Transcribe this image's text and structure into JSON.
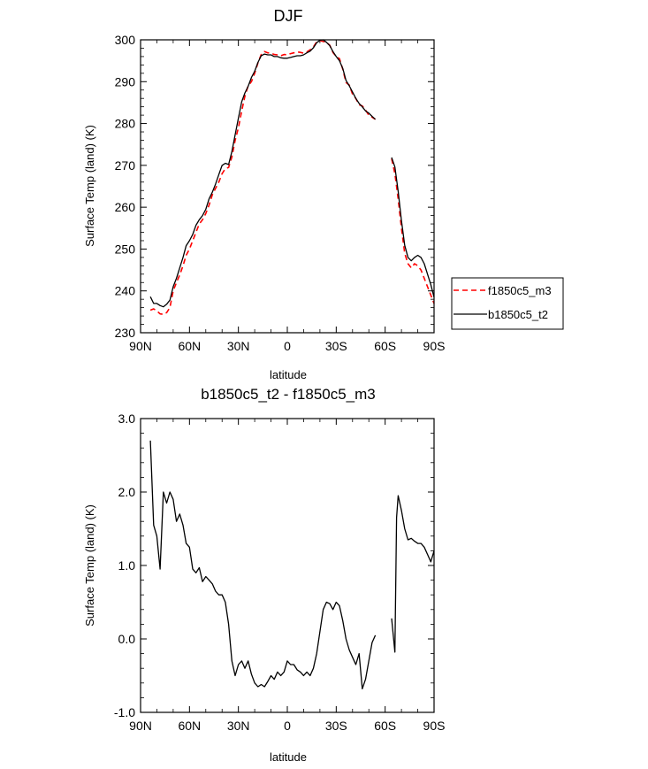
{
  "chart_data": [
    {
      "type": "line",
      "title": "DJF",
      "xlabel": "latitude",
      "ylabel": "Surface Temp (land) (K)",
      "xlim": [
        90,
        -90
      ],
      "ylim": [
        230,
        300
      ],
      "x_ticks": [
        90,
        60,
        30,
        0,
        -30,
        -60,
        -90
      ],
      "x_tick_labels": [
        "90N",
        "60N",
        "30N",
        "0",
        "30S",
        "60S",
        "90S"
      ],
      "y_ticks": [
        230,
        240,
        250,
        260,
        270,
        280,
        290,
        300
      ],
      "y_tick_labels": [
        "230",
        "240",
        "250",
        "260",
        "270",
        "280",
        "290",
        "300"
      ],
      "legend": {
        "position": "right"
      },
      "series": [
        {
          "name": "f1850c5_m3",
          "color": "#ff0000",
          "dash": "dashed",
          "segments": [
            {
              "x": [
                84,
                82,
                80,
                78,
                76,
                74,
                72,
                70,
                68,
                66,
                64,
                62,
                60,
                58,
                56,
                54,
                52,
                50,
                48,
                46,
                44,
                42,
                40,
                38,
                36,
                34,
                32,
                30,
                28,
                26,
                24,
                22,
                20,
                18,
                16,
                14,
                12,
                10,
                8,
                6,
                4,
                2,
                0,
                -2,
                -4,
                -6,
                -8,
                -10,
                -12,
                -14,
                -16,
                -18,
                -20,
                -22,
                -24,
                -26,
                -28,
                -30,
                -32,
                -34,
                -36,
                -38,
                -40,
                -42,
                -44,
                -46,
                -48,
                -50,
                -52,
                -54
              ],
              "y": [
                235.4,
                235.7,
                235.2,
                234.5,
                234.4,
                234.8,
                236.0,
                240.0,
                242.0,
                243.8,
                246.0,
                248.5,
                250.0,
                252.0,
                254.0,
                256.0,
                257.0,
                258.5,
                260.5,
                263.0,
                264.5,
                266.0,
                268.0,
                269.2,
                269.5,
                272.0,
                276.0,
                279.0,
                283.0,
                286.5,
                289.0,
                290.0,
                292.0,
                294.5,
                296.5,
                297.2,
                296.9,
                296.8,
                296.5,
                296.4,
                296.2,
                296.5,
                296.4,
                296.7,
                296.9,
                297.1,
                297.0,
                296.8,
                297.1,
                297.6,
                298.3,
                299.5,
                299.8,
                299.6,
                299.4,
                298.7,
                297.0,
                296.0,
                295.5,
                293.0,
                289.8,
                289.2,
                287.0,
                286.0,
                284.5,
                284.2,
                283.2,
                282.0,
                281.5,
                281.0
              ]
            },
            {
              "x": [
                -64,
                -66,
                -68,
                -70,
                -72,
                -74,
                -76,
                -78,
                -80,
                -82,
                -84,
                -86,
                -88,
                -90
              ],
              "y": [
                271.6,
                268.0,
                262.0,
                255.0,
                249.0,
                246.5,
                245.5,
                246.5,
                246.0,
                245.0,
                243.0,
                241.0,
                239.0,
                237.0
              ]
            }
          ]
        },
        {
          "name": "b1850c5_t2",
          "color": "#000000",
          "dash": "solid",
          "segments": [
            {
              "x": [
                84,
                82,
                80,
                78,
                76,
                74,
                72,
                70,
                68,
                66,
                64,
                62,
                60,
                58,
                56,
                54,
                52,
                50,
                48,
                46,
                44,
                42,
                40,
                38,
                36,
                34,
                32,
                30,
                28,
                26,
                24,
                22,
                20,
                18,
                16,
                14,
                12,
                10,
                8,
                6,
                4,
                2,
                0,
                -2,
                -4,
                -6,
                -8,
                -10,
                -12,
                -14,
                -16,
                -18,
                -20,
                -22,
                -24,
                -26,
                -28,
                -30,
                -32,
                -34,
                -36,
                -38,
                -40,
                -42,
                -44,
                -46,
                -48,
                -50,
                -52,
                -54
              ],
              "y": [
                238.6,
                237.0,
                237.0,
                236.5,
                236.2,
                236.8,
                237.8,
                241.0,
                243.0,
                245.5,
                248.0,
                250.8,
                252.0,
                253.5,
                255.7,
                257.0,
                258.0,
                259.5,
                262.0,
                263.6,
                265.5,
                267.8,
                270.0,
                270.5,
                270.2,
                273.3,
                277.3,
                281.3,
                285.2,
                287.3,
                288.9,
                291.0,
                292.5,
                294.6,
                296.2,
                296.6,
                296.4,
                296.4,
                296.0,
                296.0,
                295.7,
                295.6,
                295.6,
                295.8,
                296.0,
                296.2,
                296.2,
                296.4,
                296.9,
                297.3,
                298.1,
                299.3,
                299.9,
                300.0,
                299.4,
                298.6,
                297.2,
                296.0,
                295.0,
                293.2,
                290.3,
                289.0,
                287.5,
                286.0,
                284.8,
                284.0,
                283.0,
                282.5,
                281.7,
                281.0
              ]
            },
            {
              "x": [
                -64,
                -66,
                -68,
                -70,
                -72,
                -74,
                -76,
                -78,
                -80,
                -82,
                -84,
                -86,
                -88,
                -90
              ],
              "y": [
                271.9,
                269.6,
                263.8,
                256.8,
                250.9,
                248.0,
                247.2,
                248.0,
                248.5,
                248.0,
                246.5,
                244.0,
                241.5,
                238.5
              ]
            }
          ]
        }
      ]
    },
    {
      "type": "line",
      "title": "b1850c5_t2 - f1850c5_m3",
      "xlabel": "latitude",
      "ylabel": "Surface Temp (land) (K)",
      "xlim": [
        90,
        -90
      ],
      "ylim": [
        -1.0,
        3.0
      ],
      "x_ticks": [
        90,
        60,
        30,
        0,
        -30,
        -60,
        -90
      ],
      "x_tick_labels": [
        "90N",
        "60N",
        "30N",
        "0",
        "30S",
        "60S",
        "90S"
      ],
      "y_ticks": [
        -1.0,
        0.0,
        1.0,
        2.0,
        3.0
      ],
      "y_tick_labels": [
        "-1.0",
        "0.0",
        "1.0",
        "2.0",
        "3.0"
      ],
      "series": [
        {
          "name": "b1850c5_t2 - f1850c5_m3",
          "color": "#000000",
          "dash": "solid",
          "segments": [
            {
              "x": [
                84,
                82,
                80,
                78,
                76,
                74,
                72,
                70,
                68,
                66,
                64,
                62,
                60,
                58,
                56,
                54,
                52,
                50,
                48,
                46,
                44,
                42,
                40,
                38,
                36,
                34,
                32,
                30,
                28,
                26,
                24,
                22,
                20,
                18,
                16,
                14,
                12,
                10,
                8,
                6,
                4,
                2,
                0,
                -2,
                -4,
                -6,
                -8,
                -10,
                -12,
                -14,
                -16,
                -18,
                -20,
                -22,
                -24,
                -26,
                -28,
                -30,
                -32,
                -34,
                -36,
                -38,
                -40,
                -42,
                -44,
                -46,
                -48,
                -50,
                -52,
                -54
              ],
              "y": [
                2.7,
                1.55,
                1.4,
                0.95,
                2.0,
                1.85,
                2.0,
                1.9,
                1.6,
                1.7,
                1.55,
                1.3,
                1.25,
                0.95,
                0.9,
                0.97,
                0.78,
                0.85,
                0.8,
                0.75,
                0.65,
                0.6,
                0.6,
                0.5,
                0.2,
                -0.3,
                -0.5,
                -0.35,
                -0.3,
                -0.4,
                -0.3,
                -0.48,
                -0.6,
                -0.65,
                -0.62,
                -0.65,
                -0.58,
                -0.5,
                -0.55,
                -0.45,
                -0.5,
                -0.45,
                -0.3,
                -0.35,
                -0.35,
                -0.42,
                -0.45,
                -0.5,
                -0.45,
                -0.5,
                -0.4,
                -0.2,
                0.1,
                0.4,
                0.5,
                0.48,
                0.4,
                0.5,
                0.45,
                0.25,
                0.0,
                -0.15,
                -0.25,
                -0.35,
                -0.2,
                -0.68,
                -0.55,
                -0.3,
                -0.05,
                0.05
              ]
            },
            {
              "x": [
                -64,
                -66,
                -67,
                -68,
                -70,
                -72,
                -74,
                -76,
                -78,
                -80,
                -82,
                -84,
                -86,
                -88,
                -90
              ],
              "y": [
                0.28,
                -0.18,
                1.65,
                1.95,
                1.75,
                1.5,
                1.35,
                1.37,
                1.33,
                1.3,
                1.3,
                1.25,
                1.15,
                1.05,
                1.2
              ]
            }
          ]
        }
      ]
    }
  ]
}
